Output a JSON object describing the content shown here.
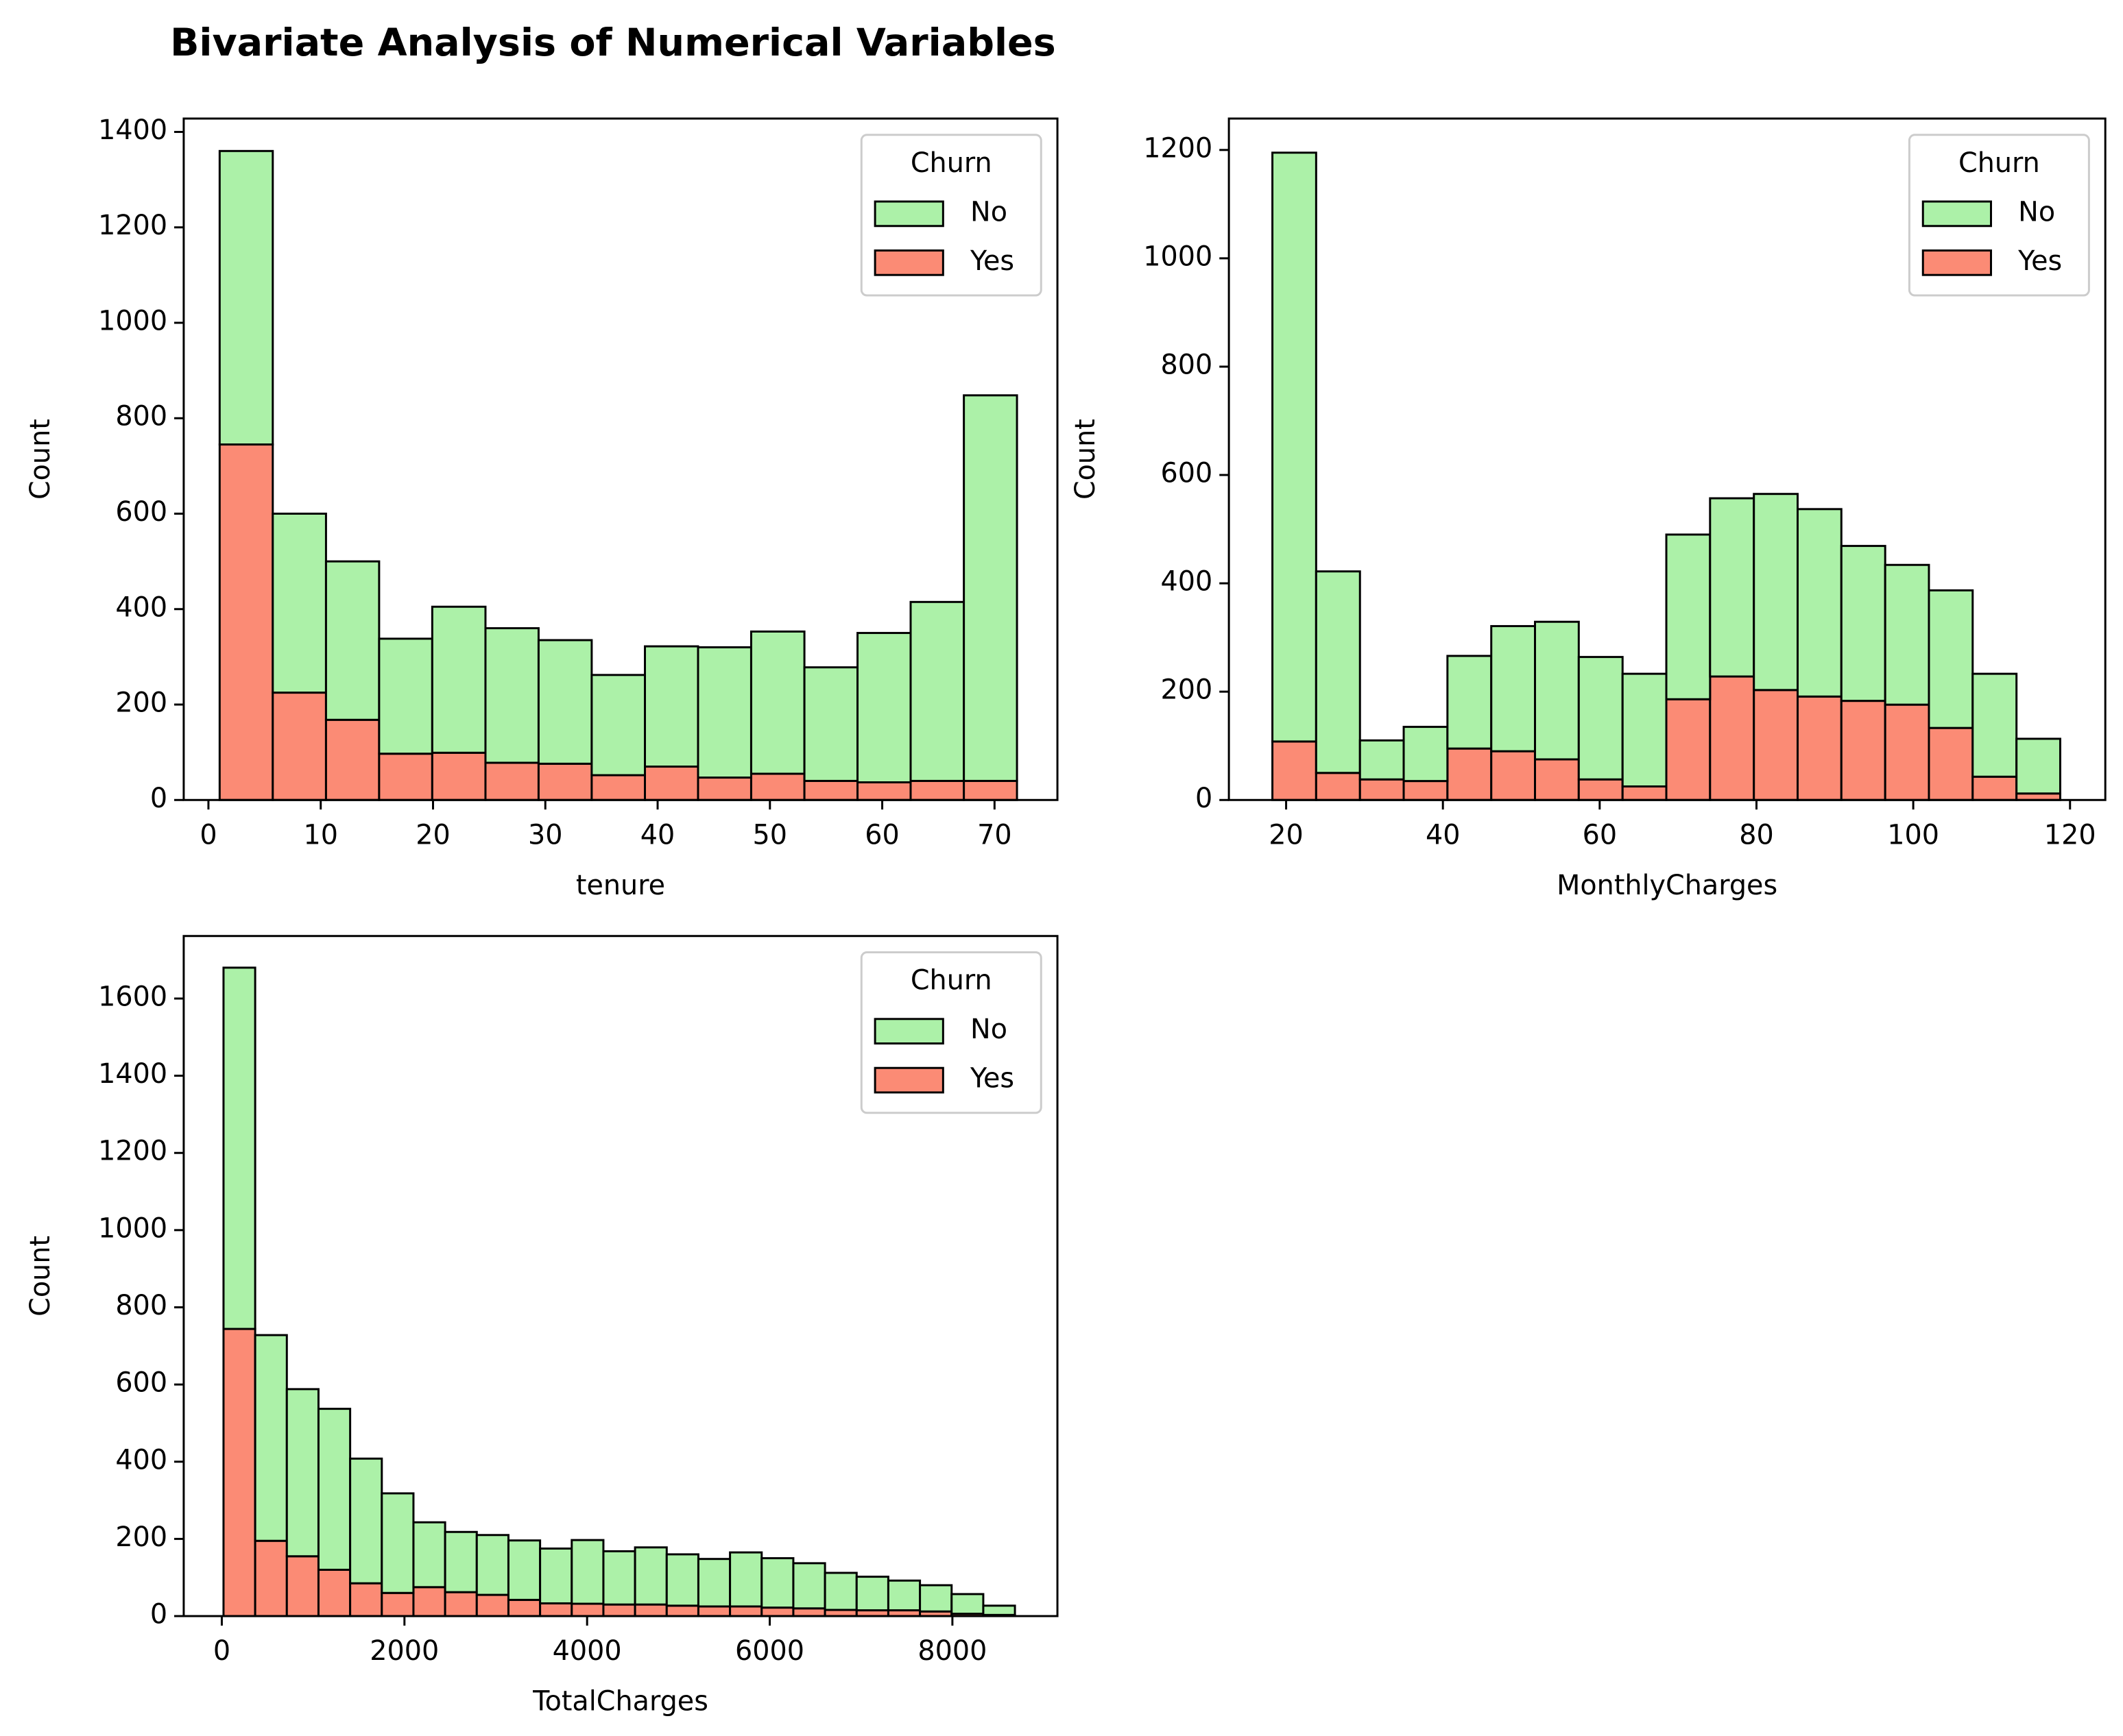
{
  "title": "Bivariate Analysis of Numerical Variables",
  "chart_data": [
    {
      "type": "histogram",
      "xlabel": "tenure",
      "ylabel": "Count",
      "legend_title": "Churn",
      "legend": "upper right",
      "bins": [
        1,
        5.73,
        10.47,
        15.2,
        19.93,
        24.67,
        29.4,
        34.13,
        38.87,
        43.6,
        48.33,
        53.07,
        57.8,
        62.53,
        67.27,
        72
      ],
      "series": [
        {
          "name": "No",
          "color": "#acf1a8",
          "values": [
            615,
            375,
            332,
            241,
            306,
            282,
            259,
            210,
            252,
            273,
            298,
            238,
            313,
            375,
            808
          ]
        },
        {
          "name": "Yes",
          "color": "#fb8b75",
          "values": [
            745,
            225,
            168,
            97,
            99,
            78,
            76,
            52,
            70,
            47,
            55,
            40,
            37,
            40,
            40
          ]
        }
      ],
      "xlim": [
        -2.2,
        75.6
      ],
      "xticks": [
        0,
        10,
        20,
        30,
        40,
        50,
        60,
        70
      ],
      "ylim": [
        0,
        1428
      ],
      "yticks": [
        0,
        200,
        400,
        600,
        800,
        1000,
        1200,
        1400
      ]
    },
    {
      "type": "histogram",
      "xlabel": "MonthlyCharges",
      "ylabel": "Count",
      "legend_title": "Churn",
      "legend": "upper right",
      "bins": [
        18.25,
        23.83,
        29.42,
        35,
        40.58,
        46.17,
        51.75,
        57.33,
        62.92,
        68.5,
        74.08,
        79.67,
        85.25,
        90.83,
        96.42,
        102,
        107.58,
        113.17,
        118.75
      ],
      "series": [
        {
          "name": "No",
          "color": "#acf1a8",
          "values": [
            1087,
            372,
            72,
            100,
            171,
            231,
            254,
            226,
            208,
            304,
            329,
            362,
            346,
            286,
            258,
            254,
            190,
            101
          ]
        },
        {
          "name": "Yes",
          "color": "#fb8b75",
          "values": [
            108,
            50,
            38,
            35,
            95,
            90,
            75,
            38,
            25,
            186,
            228,
            203,
            191,
            183,
            176,
            133,
            43,
            12
          ]
        }
      ],
      "xlim": [
        12.7,
        124.5
      ],
      "xticks": [
        20,
        40,
        60,
        80,
        100,
        120
      ],
      "ylim": [
        0,
        1258
      ],
      "yticks": [
        0,
        200,
        400,
        600,
        800,
        1000,
        1200
      ]
    },
    {
      "type": "histogram",
      "xlabel": "TotalCharges",
      "ylabel": "Count",
      "legend_title": "Churn",
      "legend": "upper right",
      "bins": [
        18.8,
        365.4,
        712.1,
        1058.7,
        1405.4,
        1752,
        2098.6,
        2445.3,
        2791.9,
        3138.6,
        3485.2,
        3831.8,
        4178.5,
        4525.1,
        4871.8,
        5218.4,
        5565,
        5911.7,
        6258.3,
        6605,
        6951.6,
        7298.2,
        7644.9,
        7991.5,
        8338.2,
        8684.8
      ],
      "series": [
        {
          "name": "No",
          "color": "#acf1a8",
          "values": [
            936,
            533,
            433,
            417,
            323,
            258,
            168,
            156,
            155,
            154,
            142,
            165,
            138,
            148,
            133,
            123,
            140,
            128,
            117,
            96,
            87,
            77,
            68,
            51,
            24
          ]
        },
        {
          "name": "Yes",
          "color": "#fb8b75",
          "values": [
            744,
            195,
            155,
            120,
            85,
            60,
            75,
            62,
            55,
            42,
            33,
            32,
            30,
            30,
            27,
            25,
            25,
            22,
            20,
            16,
            15,
            15,
            12,
            6,
            3
          ]
        }
      ],
      "xlim": [
        -417,
        9150
      ],
      "xticks": [
        0,
        2000,
        4000,
        6000,
        8000
      ],
      "ylim": [
        0,
        1762
      ],
      "yticks": [
        0,
        200,
        400,
        600,
        800,
        1000,
        1200,
        1400,
        1600
      ]
    }
  ]
}
